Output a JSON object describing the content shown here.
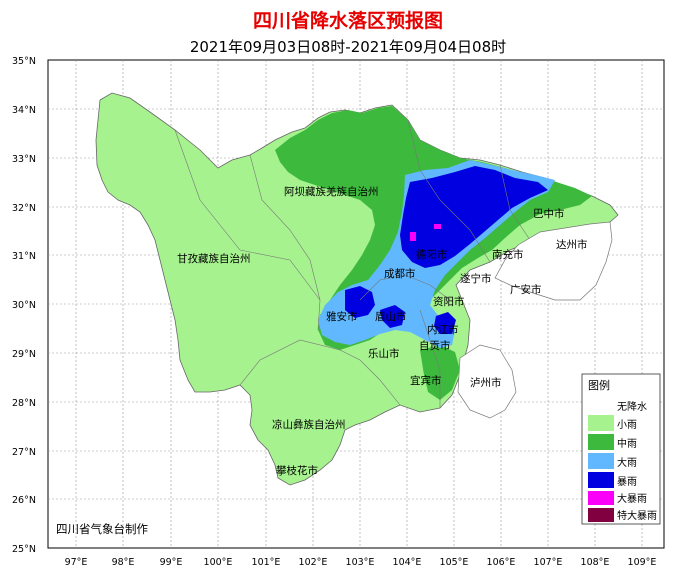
{
  "title": "四川省降水落区预报图",
  "subtitle": "2021年09月03日08时-2021年09月04日08时",
  "credit": "四川省气象台制作",
  "lat_labels": [
    "35°N",
    "34°N",
    "33°N",
    "32°N",
    "31°N",
    "30°N",
    "29°N",
    "28°N",
    "27°N",
    "26°N",
    "25°N"
  ],
  "lon_labels": [
    "97°E",
    "98°E",
    "99°E",
    "100°E",
    "101°E",
    "102°E",
    "103°E",
    "104°E",
    "105°E",
    "106°E",
    "107°E",
    "108°E",
    "109°E"
  ],
  "places": {
    "aba": "阿坝藏族羌族自治州",
    "ganzi": "甘孜藏族自治州",
    "liangshan": "凉山彝族自治州",
    "panzhihua": "攀枝花市",
    "bazhong": "巴中市",
    "dazhou": "达州市",
    "nanchong": "南充市",
    "guangan": "广安市",
    "suining": "遂宁市",
    "chengdu": "成都市",
    "deyang": "德阳市",
    "yaan": "雅安市",
    "meishan": "眉山市",
    "ziyang": "资阳市",
    "neijiang": "内江市",
    "zigong": "自贡市",
    "leshan": "乐山市",
    "yibin": "宜宾市",
    "luzhou": "泸州市"
  },
  "legend": {
    "title": "图例",
    "items": [
      {
        "label": "无降水",
        "color": "#ffffff"
      },
      {
        "label": "小雨",
        "color": "#a6f28f"
      },
      {
        "label": "中雨",
        "color": "#3dba3d"
      },
      {
        "label": "大雨",
        "color": "#61b8ff"
      },
      {
        "label": "暴雨",
        "color": "#0000e1"
      },
      {
        "label": "大暴雨",
        "color": "#fa00fa"
      },
      {
        "label": "特大暴雨",
        "color": "#800040"
      }
    ]
  }
}
